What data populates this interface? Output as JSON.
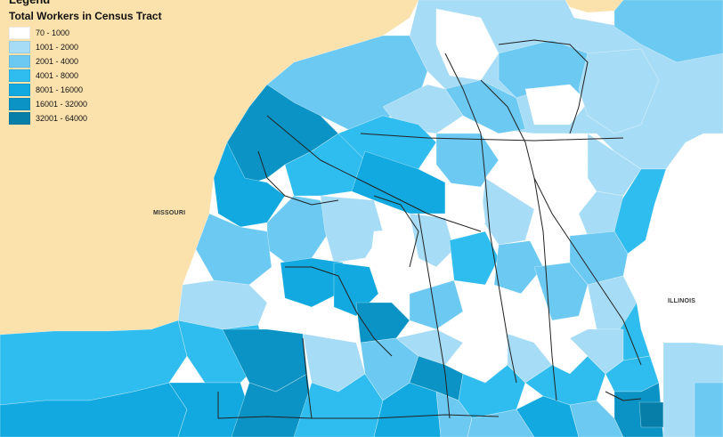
{
  "legend": {
    "heading": "Legend",
    "title": "Total Workers in Census Tract",
    "classes": [
      {
        "label": "70 - 1000",
        "color": "#ffffff"
      },
      {
        "label": "1001 - 2000",
        "color": "#a6dcf5"
      },
      {
        "label": "2001 - 4000",
        "color": "#6cc9f2"
      },
      {
        "label": "4001 - 8000",
        "color": "#2fbcee"
      },
      {
        "label": "8001 - 16000",
        "color": "#11a9df"
      },
      {
        "label": "16001 - 32000",
        "color": "#0a93c4"
      },
      {
        "label": "32001 - 64000",
        "color": "#067ea8"
      }
    ]
  },
  "places": {
    "missouri": "MISSOURI",
    "illinois": "ILLINOIS"
  },
  "colors": {
    "land_outside": "#fbe2ad",
    "routes": "#222222"
  }
}
